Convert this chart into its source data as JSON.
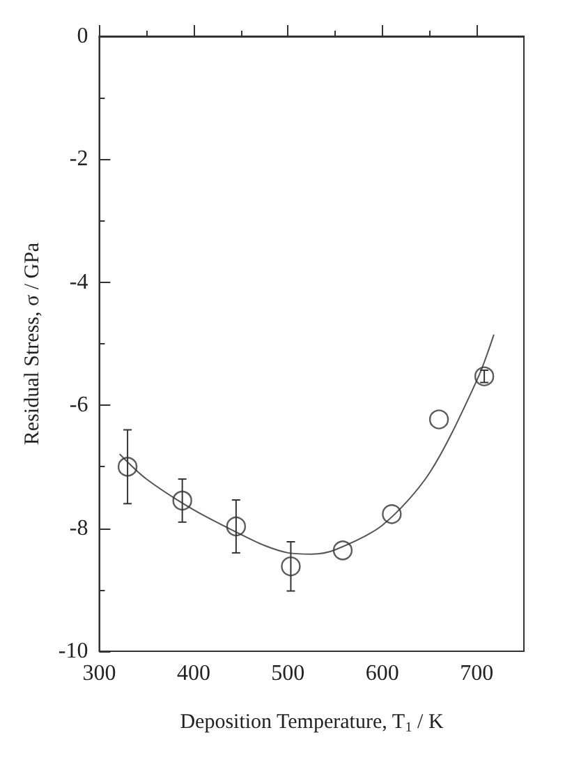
{
  "chart_data": {
    "type": "scatter",
    "xlabel": "Deposition Temperature, T$_{1}$ / K",
    "ylabel": "Residual Stress, σ / GPa",
    "xlim": [
      300,
      750
    ],
    "xticks": [
      300,
      400,
      500,
      600,
      700
    ],
    "ylim": [
      -10,
      0
    ],
    "yticks": [
      -10,
      -8,
      -6,
      -4,
      -2,
      0
    ],
    "grid": false,
    "marker": "circle",
    "series": [
      {
        "color": "#333333",
        "x": [
          330,
          388,
          445,
          503,
          558,
          610,
          660,
          708
        ],
        "values": [
          -7.0,
          -7.55,
          -7.97,
          -8.62,
          -8.36,
          -7.77,
          -6.23,
          -5.53
        ],
        "errors": [
          0.6,
          0.35,
          0.43,
          0.4,
          null,
          null,
          null,
          0.1
        ]
      },
      {
        "type": "line",
        "color": "#555555",
        "line_style": "solid",
        "marker": "none",
        "x": [
          322,
          350,
          400,
          450,
          475,
          500,
          525,
          550,
          600,
          650,
          700,
          718
        ],
        "values": [
          -6.8,
          -7.2,
          -7.7,
          -8.1,
          -8.28,
          -8.4,
          -8.42,
          -8.35,
          -7.95,
          -7.1,
          -5.6,
          -4.86
        ]
      }
    ]
  }
}
